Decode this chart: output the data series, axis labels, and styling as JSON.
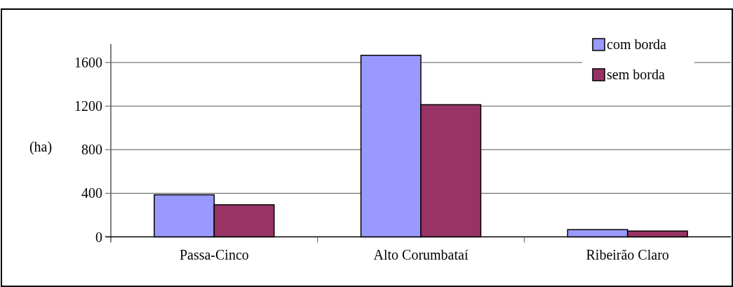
{
  "chart_data": {
    "type": "bar",
    "ylabel": "(ha)",
    "categories": [
      "Passa-Cinco",
      "Alto Corumbataí",
      "Ribeirão Claro"
    ],
    "series": [
      {
        "name": "com borda",
        "color": "#9999ff",
        "values": [
          386,
          1666,
          66
        ]
      },
      {
        "name": "sem borda",
        "color": "#993366",
        "values": [
          294,
          1213,
          53
        ]
      }
    ],
    "ylim": [
      0,
      1770
    ],
    "yticks": [
      0,
      400,
      800,
      1200,
      1600
    ],
    "grid": "y",
    "legend": "top right"
  }
}
